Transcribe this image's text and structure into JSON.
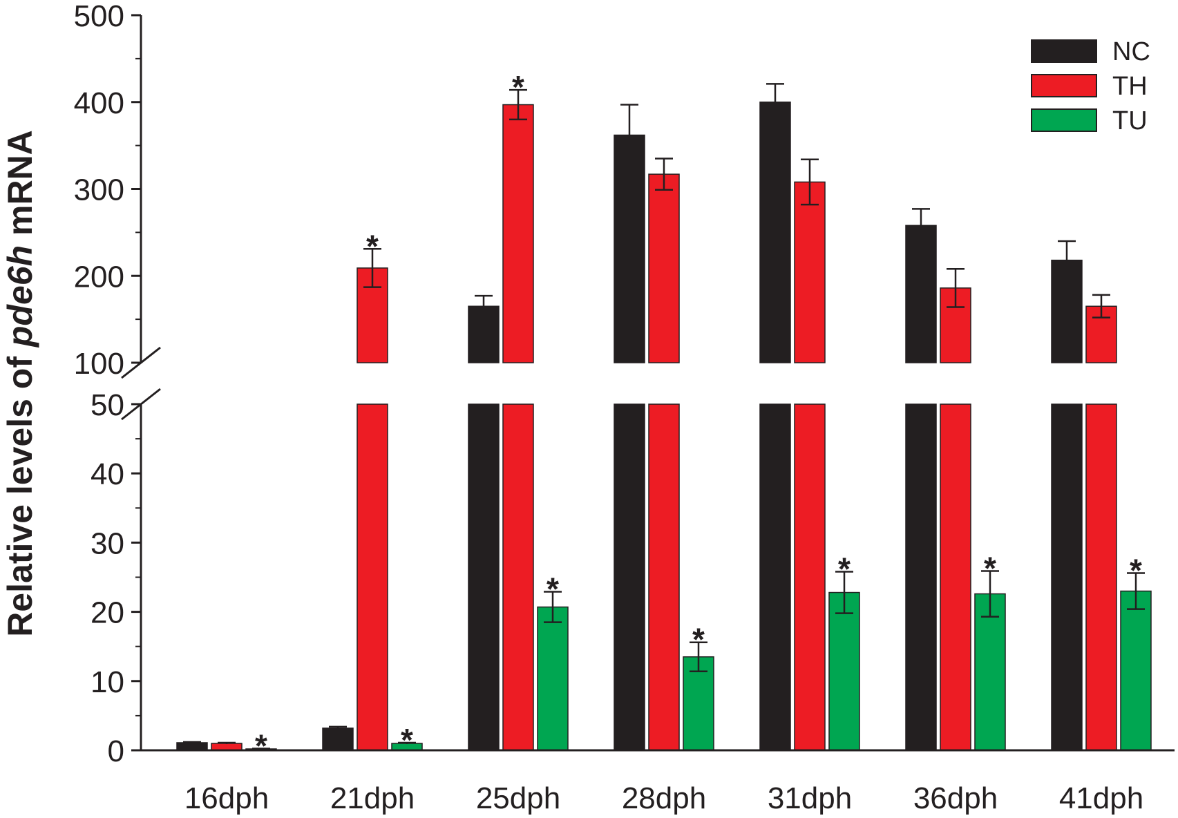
{
  "chart_data": {
    "type": "bar",
    "ylabel_parts": [
      "Relative levels of ",
      "pde6h",
      " mRNA"
    ],
    "categories": [
      "16dph",
      "21dph",
      "25dph",
      "28dph",
      "31dph",
      "36dph",
      "41dph"
    ],
    "y_axis_break": [
      50,
      100
    ],
    "ylim": [
      0,
      500
    ],
    "lower_ticks": [
      "0",
      "10",
      "20",
      "30",
      "40",
      "50"
    ],
    "upper_ticks": [
      "100",
      "200",
      "300",
      "400",
      "500"
    ],
    "legend_position": "top-right",
    "significance_marker": "*",
    "series": [
      {
        "name": "NC",
        "color": "#231f20",
        "values": [
          1.1,
          3.2,
          165,
          362,
          400,
          258,
          218
        ],
        "errors": [
          0.1,
          0.2,
          12,
          35,
          21,
          19,
          22
        ],
        "significant": [
          false,
          false,
          false,
          false,
          false,
          false,
          false
        ]
      },
      {
        "name": "TH",
        "color": "#ed1c24",
        "values": [
          1.0,
          209,
          397,
          317,
          308,
          186,
          165
        ],
        "errors": [
          0.1,
          22,
          17,
          18,
          26,
          22,
          13
        ],
        "significant": [
          false,
          true,
          true,
          false,
          false,
          false,
          false
        ]
      },
      {
        "name": "TU",
        "color": "#00a651",
        "values": [
          0.2,
          1.0,
          20.7,
          13.5,
          22.8,
          22.6,
          23.0
        ],
        "errors": [
          0.05,
          0.1,
          2.2,
          2.1,
          3.0,
          3.3,
          2.6
        ],
        "significant": [
          true,
          true,
          true,
          true,
          true,
          true,
          true
        ]
      }
    ]
  }
}
